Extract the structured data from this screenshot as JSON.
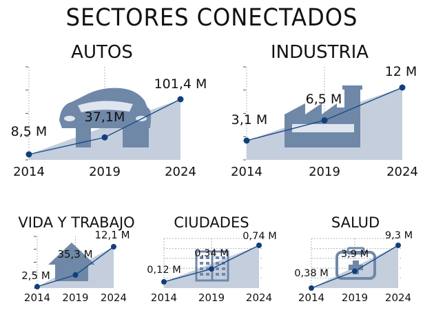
{
  "title": "SECTORES CONECTADOS",
  "colors": {
    "line": "#1a4a85",
    "area": "#c4cedd",
    "icon": "#6f88a8",
    "dot": "#123f78"
  },
  "chart_data": [
    {
      "id": "autos",
      "type": "area",
      "title": "AUTOS",
      "icon": "car-icon",
      "x": [
        "2014",
        "2019",
        "2024"
      ],
      "values": [
        8.5,
        37.1,
        101.4
      ],
      "data_labels": [
        "8,5 M",
        "37,1M",
        "101,4 M"
      ],
      "unit": "M",
      "ylim": [
        0,
        101.4
      ],
      "grid": false
    },
    {
      "id": "industria",
      "type": "area",
      "title": "INDUSTRIA",
      "icon": "factory-icon",
      "x": [
        "2014",
        "2019",
        "2024"
      ],
      "values": [
        3.1,
        6.5,
        12
      ],
      "data_labels": [
        "3,1 M",
        "6,5 M",
        "12 M"
      ],
      "unit": "M",
      "ylim": [
        0,
        12
      ],
      "grid": false
    },
    {
      "id": "vida",
      "type": "area",
      "title": "VIDA Y TRABAJO",
      "icon": "house-icon",
      "x": [
        "2014",
        "2019",
        "2024"
      ],
      "values": [
        2.5,
        35.3,
        12.1
      ],
      "data_labels": [
        "2,5 M",
        "35,3 M",
        "12,1 M"
      ],
      "unit": "M",
      "grid": false
    },
    {
      "id": "ciudades",
      "type": "area",
      "title": "CIUDADES",
      "icon": "buildings-icon",
      "x": [
        "2014",
        "2019",
        "2024"
      ],
      "values": [
        0.12,
        0.34,
        0.74
      ],
      "data_labels": [
        "0,12 M",
        "0,34 M",
        "0,74 M"
      ],
      "unit": "M",
      "ylim": [
        0,
        0.74
      ],
      "grid": true
    },
    {
      "id": "salud",
      "type": "area",
      "title": "SALUD",
      "icon": "medkit-icon",
      "x": [
        "2014",
        "2019",
        "2024"
      ],
      "values": [
        0.38,
        3.9,
        9.3
      ],
      "data_labels": [
        "0,38 M",
        "3,9 M",
        "9,3 M"
      ],
      "unit": "M",
      "ylim": [
        0,
        9.3
      ],
      "grid": true
    }
  ]
}
